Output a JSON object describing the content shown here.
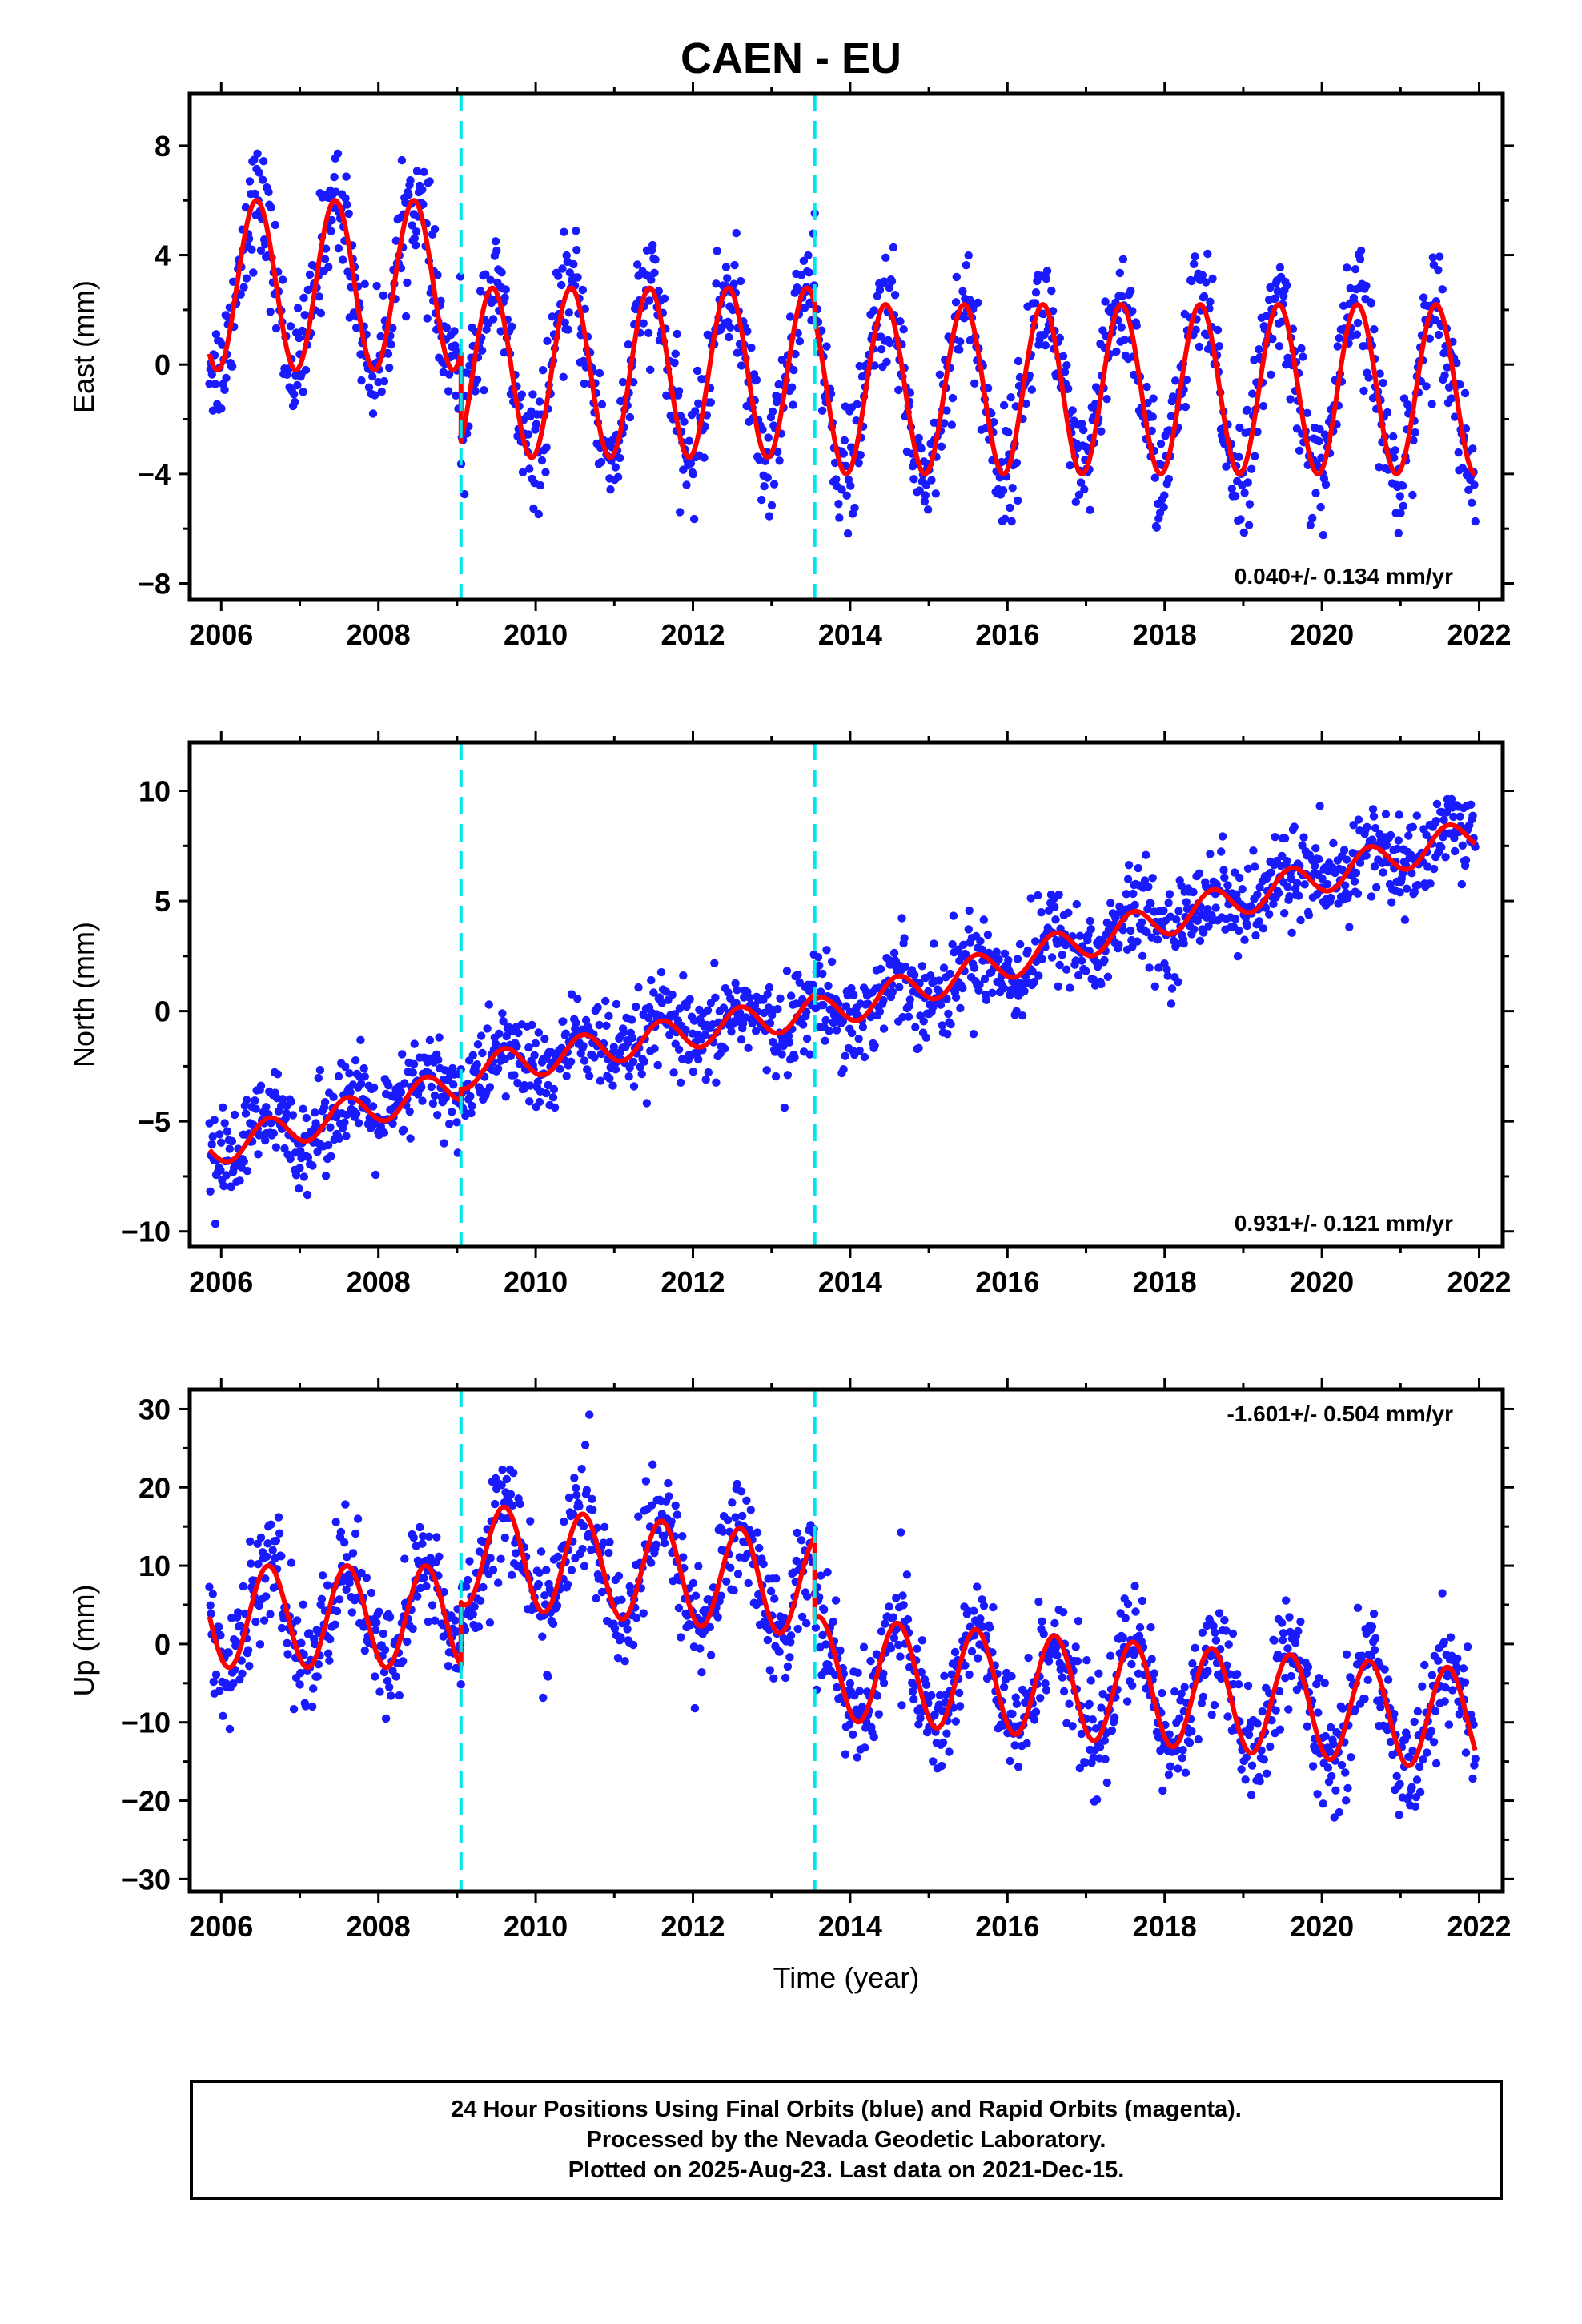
{
  "figure": {
    "title": "CAEN - EU",
    "footer": [
      "24 Hour Positions Using Final Orbits (blue) and Rapid Orbits (magenta).",
      "Processed by the Nevada Geodetic Laboratory.",
      "Plotted on 2025-Aug-23. Last data on 2021-Dec-15."
    ]
  },
  "colors": {
    "points": "#1a1aff",
    "model": "#ff0000",
    "breaks": "#00e5ee",
    "axis": "#000000"
  },
  "chart_data": [
    {
      "type": "scatter",
      "component": "east",
      "ylabel": "East (mm)",
      "xlabel": "",
      "xlim": [
        2005.6,
        2022.3
      ],
      "ylim": [
        -8.6,
        9.9
      ],
      "xticks": [
        2006,
        2008,
        2010,
        2012,
        2014,
        2016,
        2018,
        2020,
        2022
      ],
      "yticks": [
        -8,
        -4,
        0,
        4,
        8
      ],
      "data_range": [
        2005.85,
        2021.95
      ],
      "rate_text": "0.040+/- 0.134 mm/yr",
      "rate_position": "bottom-right",
      "breaks": [
        2009.05,
        2013.55
      ],
      "model_segments": [
        {
          "start": 2005.85,
          "end": 2009.05,
          "offset": 2.9,
          "trend": 0.0,
          "amplitude": 3.1,
          "peak": 2006.45
        },
        {
          "start": 2009.05,
          "end": 2013.55,
          "offset": -0.3,
          "trend": 0.0,
          "amplitude": 3.1,
          "peak": 2006.45
        },
        {
          "start": 2013.55,
          "end": 2021.95,
          "offset": -0.9,
          "trend": 0.0,
          "amplitude": 3.1,
          "peak": 2006.45
        }
      ],
      "scatter_sd": 1.05
    },
    {
      "type": "scatter",
      "component": "north",
      "ylabel": "North (mm)",
      "xlabel": "",
      "xlim": [
        2005.6,
        2022.3
      ],
      "ylim": [
        -10.7,
        12.2
      ],
      "xticks": [
        2006,
        2008,
        2010,
        2012,
        2014,
        2016,
        2018,
        2020,
        2022
      ],
      "yticks": [
        -10,
        -5,
        0,
        5,
        10
      ],
      "data_range": [
        2005.85,
        2021.95
      ],
      "rate_text": "0.931+/- 0.121 mm/yr",
      "rate_position": "bottom-right",
      "breaks": [
        2009.05,
        2013.55
      ],
      "model_segments": [
        {
          "start": 2005.85,
          "end": 2009.05,
          "offset": -6.3,
          "trend": 0.93,
          "amplitude": 0.75,
          "peak": 2006.6
        },
        {
          "start": 2009.05,
          "end": 2013.55,
          "offset": -2.8,
          "trend": 0.63,
          "amplitude": 0.75,
          "peak": 2006.6
        },
        {
          "start": 2013.55,
          "end": 2021.95,
          "offset": -0.2,
          "trend": 0.98,
          "amplitude": 0.75,
          "peak": 2006.6
        }
      ],
      "scatter_sd": 1.05
    },
    {
      "type": "scatter",
      "component": "up",
      "ylabel": "Up (mm)",
      "xlabel": "Time (year)",
      "xlim": [
        2005.6,
        2022.3
      ],
      "ylim": [
        -31.6,
        32.5
      ],
      "xticks": [
        2006,
        2008,
        2010,
        2012,
        2014,
        2016,
        2018,
        2020,
        2022
      ],
      "yticks": [
        -30,
        -20,
        -10,
        0,
        10,
        20,
        30
      ],
      "data_range": [
        2005.85,
        2021.95
      ],
      "rate_text": "-1.601+/- 0.504 mm/yr",
      "rate_position": "top-right",
      "breaks": [
        2009.05,
        2013.55
      ],
      "model_segments": [
        {
          "start": 2005.85,
          "end": 2009.05,
          "offset": 3.5,
          "trend": 0.0,
          "amplitude": 6.5,
          "peak": 2006.6
        },
        {
          "start": 2009.05,
          "end": 2013.55,
          "offset": 11.5,
          "trend": -0.9,
          "amplitude": 6.5,
          "peak": 2006.6
        },
        {
          "start": 2013.55,
          "end": 2021.95,
          "offset": -3.0,
          "trend": -0.8,
          "amplitude": 6.5,
          "peak": 2006.6
        }
      ],
      "scatter_sd": 3.6
    }
  ]
}
